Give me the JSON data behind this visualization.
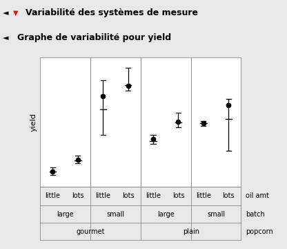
{
  "title1": "Variabilité des systèmes de mesure",
  "title2": "Graphe de variabilité pour yield",
  "ylabel": "yield",
  "background_color": "#e8e8e8",
  "plot_bg": "#ffffff",
  "groups": [
    {
      "x": 1,
      "mean": 0.12,
      "low": 0.09,
      "high": 0.15,
      "mid": 0.115
    },
    {
      "x": 2,
      "mean": 0.21,
      "low": 0.18,
      "high": 0.24,
      "mid": 0.205
    },
    {
      "x": 3,
      "mean": 0.7,
      "low": 0.4,
      "high": 0.82,
      "mid": 0.6
    },
    {
      "x": 4,
      "mean": 0.78,
      "low": 0.74,
      "high": 0.92,
      "mid": 0.785
    },
    {
      "x": 5,
      "mean": 0.37,
      "low": 0.33,
      "high": 0.4,
      "mid": 0.355
    },
    {
      "x": 6,
      "mean": 0.5,
      "low": 0.46,
      "high": 0.57,
      "mid": 0.495
    },
    {
      "x": 7,
      "mean": 0.49,
      "low": 0.47,
      "high": 0.51,
      "mid": 0.49
    },
    {
      "x": 8,
      "mean": 0.63,
      "low": 0.28,
      "high": 0.68,
      "mid": 0.525
    }
  ],
  "xtick_labels_row1": [
    "little",
    "lots",
    "little",
    "lots",
    "little",
    "lots",
    "little",
    "lots"
  ],
  "xtick_labels_row2": [
    "large",
    "small",
    "large",
    "small"
  ],
  "xtick_labels_row3": [
    "gourmet",
    "plain"
  ],
  "row1_label": "oil amt",
  "row2_label": "batch",
  "row3_label": "popcorn",
  "dividers": [
    2.5,
    4.5,
    6.5
  ],
  "ylim": [
    0.0,
    1.0
  ],
  "header1_bg": "#d4d4d4",
  "header2_bg": "#e0e0e0"
}
